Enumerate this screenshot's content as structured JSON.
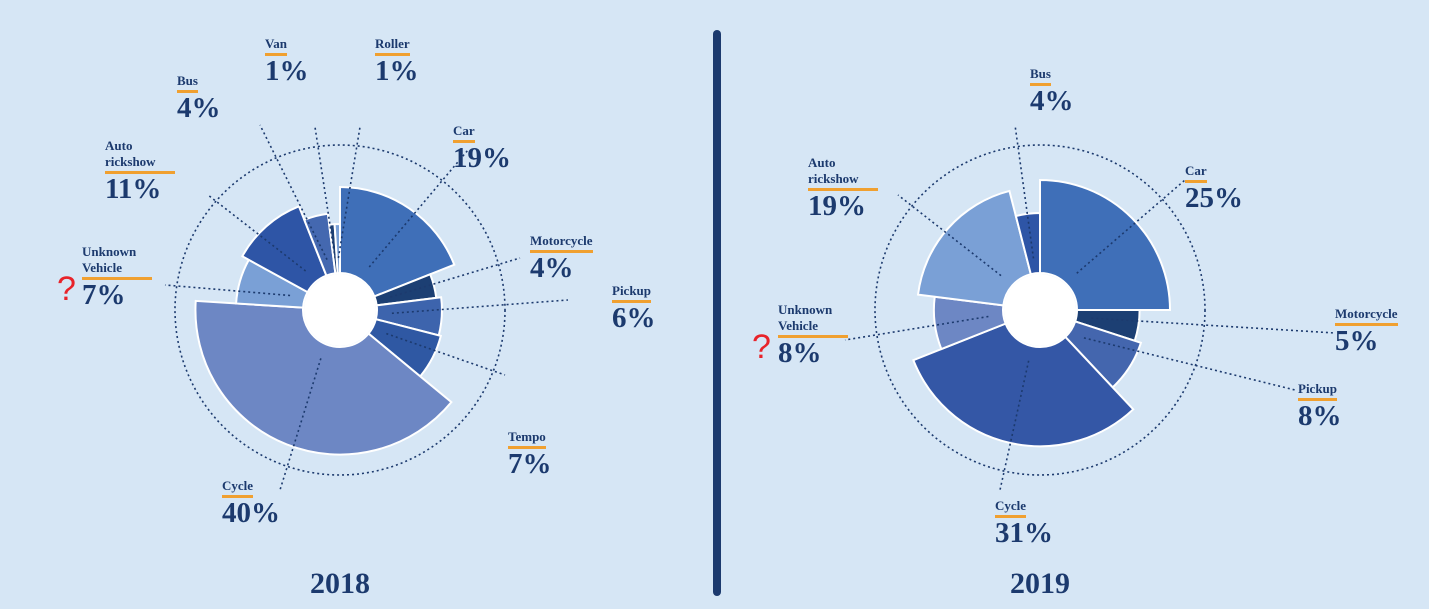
{
  "chart_data": [
    {
      "type": "pie",
      "title": "2018",
      "categories": [
        "Car",
        "Motorcycle",
        "Pickup",
        "Tempo",
        "Cycle",
        "Unknown Vehicle",
        "Auto rickshow",
        "Bus",
        "Van",
        "Roller"
      ],
      "values": [
        19,
        4,
        6,
        7,
        40,
        7,
        11,
        4,
        1,
        1
      ],
      "value_labels": [
        "19%",
        "4%",
        "6%",
        "7%",
        "40%",
        "7%",
        "11%",
        "4%",
        "1%",
        "1%"
      ],
      "colors": [
        "#3f6fb8",
        "#1c3f73",
        "#3d64ad",
        "#2f58a3",
        "#6d87c4",
        "#7aa0d6",
        "#2e55a6",
        "#4468b0",
        "#1c3f73",
        "#7aa0d6"
      ]
    },
    {
      "type": "pie",
      "title": "2019",
      "categories": [
        "Car",
        "Motorcycle",
        "Pickup",
        "Cycle",
        "Unknown Vehicle",
        "Auto rickshow",
        "Bus"
      ],
      "values": [
        25,
        5,
        8,
        31,
        8,
        19,
        4
      ],
      "value_labels": [
        "25%",
        "5%",
        "8%",
        "31%",
        "8%",
        "19%",
        "4%"
      ],
      "colors": [
        "#3f6fb8",
        "#1c3f73",
        "#4466ae",
        "#3457a6",
        "#6d87c4",
        "#7aa0d6",
        "#2e55a6"
      ]
    }
  ]
}
